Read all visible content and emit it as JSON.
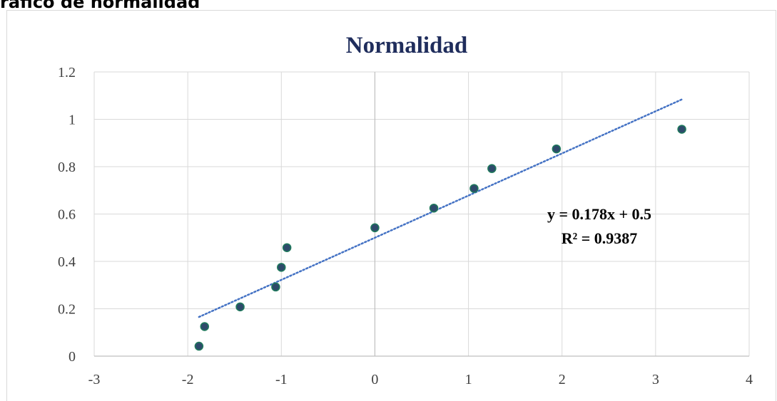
{
  "page": {
    "heading": "ráfico de normalidad"
  },
  "chart_data": {
    "type": "scatter",
    "title": "Normalidad",
    "xlabel": "",
    "ylabel": "",
    "xlim": [
      -3,
      4
    ],
    "ylim": [
      0,
      1.2
    ],
    "xticks": [
      -3,
      -2,
      -1,
      0,
      1,
      2,
      3,
      4
    ],
    "xtick_labels": [
      "-3",
      "-2",
      "-1",
      "0",
      "1",
      "2",
      "3",
      "4"
    ],
    "yticks": [
      0,
      0.2,
      0.4,
      0.6,
      0.8,
      1,
      1.2
    ],
    "ytick_labels": [
      "0",
      "0.2",
      "0.4",
      "0.6",
      "0.8",
      "1",
      "1.2"
    ],
    "grid": true,
    "series": [
      {
        "x": [
          -1.88,
          -1.82,
          -1.44,
          -1.06,
          -1.0,
          -0.94,
          0.0,
          0.63,
          1.06,
          1.25,
          1.94,
          3.28
        ],
        "y": [
          0.042,
          0.125,
          0.208,
          0.292,
          0.375,
          0.458,
          0.542,
          0.625,
          0.708,
          0.792,
          0.875,
          0.958
        ],
        "color": "#2e4a6b"
      }
    ],
    "trendline": {
      "type": "linear",
      "slope": 0.178,
      "intercept": 0.5,
      "x_range": [
        -1.88,
        3.28
      ],
      "style": "dotted",
      "color": "#4472c4",
      "equation_label": "y = 0.178x + 0.5",
      "r2_label": "R² = 0.9387"
    }
  }
}
